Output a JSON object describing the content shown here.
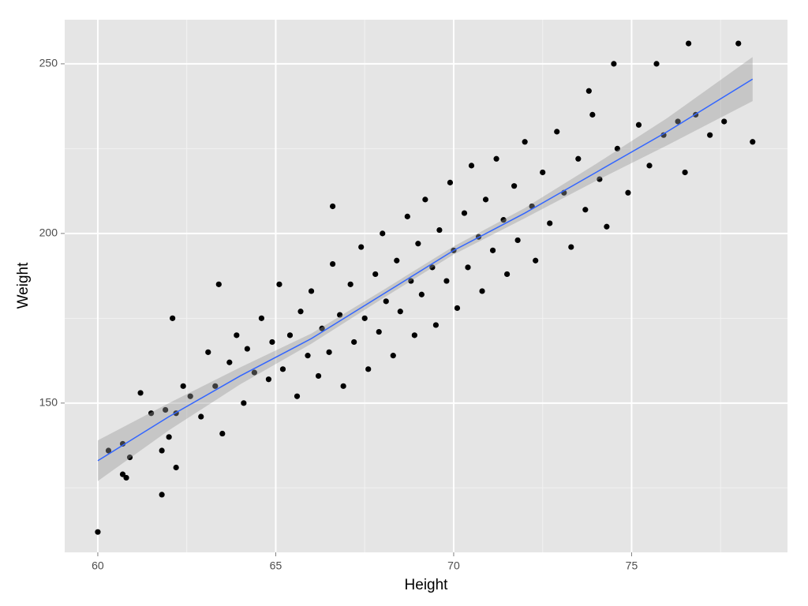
{
  "chart_data": {
    "type": "scatter",
    "x_label": "Height",
    "y_label": "Weight",
    "x": [
      60.3,
      60.7,
      60.9,
      61.2,
      61.5,
      61.8,
      61.9,
      62.0,
      62.2,
      62.4,
      62.6,
      62.9,
      63.1,
      63.3,
      63.5,
      63.7,
      63.9,
      64.1,
      64.2,
      64.4,
      64.6,
      64.8,
      64.9,
      65.1,
      65.2,
      65.4,
      65.6,
      65.7,
      65.9,
      66.0,
      66.2,
      66.3,
      66.5,
      66.6,
      66.8,
      66.9,
      67.1,
      67.2,
      67.4,
      67.5,
      67.6,
      67.8,
      67.9,
      68.0,
      68.1,
      68.3,
      68.4,
      68.5,
      68.7,
      68.8,
      68.9,
      69.0,
      69.1,
      69.2,
      69.4,
      69.5,
      69.6,
      69.8,
      69.9,
      70.0,
      70.1,
      70.3,
      70.4,
      70.5,
      70.7,
      70.8,
      70.9,
      71.1,
      71.2,
      71.4,
      71.5,
      71.7,
      71.8,
      72.0,
      72.2,
      72.3,
      72.5,
      72.7,
      72.9,
      73.1,
      73.3,
      73.5,
      73.7,
      73.9,
      74.1,
      74.3,
      74.6,
      74.9,
      75.2,
      75.5,
      75.9,
      76.3,
      76.8,
      77.2,
      77.6,
      60.0,
      61.8,
      62.1,
      63.4,
      66.6,
      74.5,
      75.7,
      76.6,
      78.0,
      78.4,
      76.5,
      62.2,
      60.7,
      60.8,
      73.8
    ],
    "y": [
      136,
      138,
      134,
      153,
      147,
      136,
      148,
      140,
      147,
      155,
      152,
      146,
      165,
      155,
      141,
      162,
      170,
      150,
      166,
      159,
      175,
      157,
      168,
      185,
      160,
      170,
      152,
      177,
      164,
      183,
      158,
      172,
      165,
      191,
      176,
      155,
      185,
      168,
      196,
      175,
      160,
      188,
      171,
      200,
      180,
      164,
      192,
      177,
      205,
      186,
      170,
      197,
      182,
      210,
      190,
      173,
      201,
      186,
      215,
      195,
      178,
      206,
      190,
      220,
      199,
      183,
      210,
      195,
      222,
      204,
      188,
      214,
      198,
      227,
      208,
      192,
      218,
      203,
      230,
      212,
      196,
      222,
      207,
      235,
      216,
      202,
      225,
      212,
      232,
      220,
      229,
      233,
      235,
      229,
      233,
      112,
      123,
      175,
      185,
      208,
      250,
      250,
      256,
      256,
      227,
      218,
      131,
      129,
      128,
      242
    ],
    "color": "#000000",
    "smooth": {
      "x": [
        60,
        62,
        64,
        66,
        68,
        70,
        72,
        74,
        76,
        78.4
      ],
      "y": [
        133,
        146,
        158,
        169,
        182,
        195,
        206,
        218,
        230,
        245.5
      ],
      "ymin": [
        127,
        142,
        155.5,
        167.5,
        180.8,
        193.8,
        204.5,
        215.5,
        226,
        239
      ],
      "ymax": [
        139,
        150,
        160.5,
        170.5,
        183.2,
        196.2,
        207.5,
        220.5,
        234,
        252
      ],
      "color": "#3366ff",
      "band_color": "#999999"
    },
    "xlim": [
      59.07,
      79.38
    ],
    "ylim": [
      106,
      263
    ],
    "xticks": [
      60,
      65,
      70,
      75
    ],
    "yticks": [
      150,
      200,
      250
    ],
    "x_minor_grid": [
      62.5,
      67.5,
      72.5,
      77.5
    ],
    "y_minor_grid": [
      125,
      175,
      225
    ],
    "grid": true
  }
}
